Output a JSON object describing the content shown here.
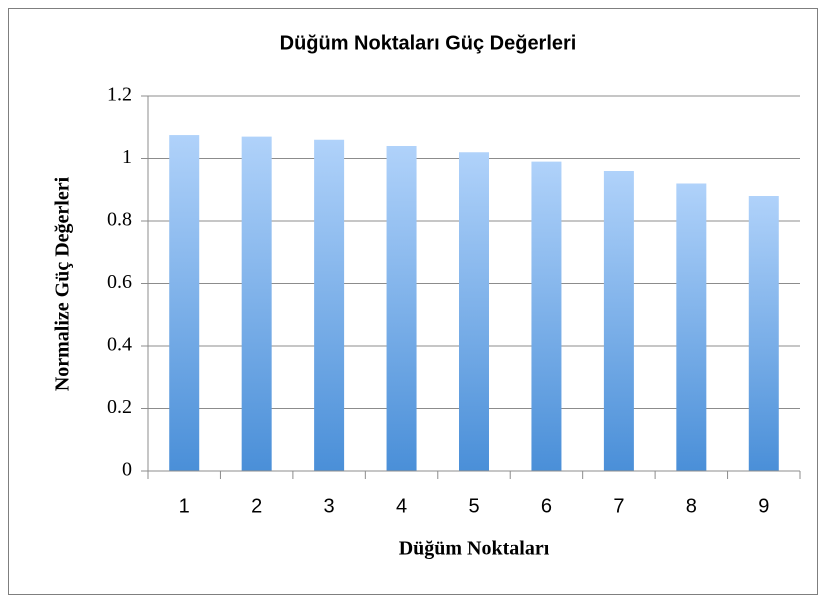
{
  "chart_data": {
    "type": "bar",
    "title": "Düğüm Noktaları Güç Değerleri",
    "x_label": "Düğüm Noktaları",
    "y_label": "Normalize Güç Değerleri",
    "categories": [
      "1",
      "2",
      "3",
      "4",
      "5",
      "6",
      "7",
      "8",
      "9"
    ],
    "values": [
      1.075,
      1.07,
      1.06,
      1.04,
      1.02,
      0.99,
      0.96,
      0.92,
      0.88
    ],
    "color": "#4a8fd8",
    "ylim": [
      0,
      1.2
    ],
    "yticks": [
      0,
      0.2,
      0.4,
      0.6,
      0.8,
      1,
      1.2
    ],
    "grid": true
  }
}
